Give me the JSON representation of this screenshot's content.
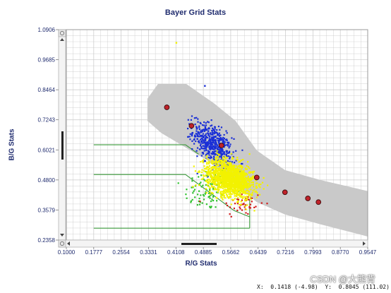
{
  "chart_data": {
    "type": "scatter",
    "title": "Bayer Grid Stats",
    "xlabel": "R/G Stats",
    "ylabel": "B/G Stats",
    "xlim": [
      0.1,
      0.9547
    ],
    "ylim": [
      0.2358,
      1.0906
    ],
    "xticks": [
      "0.1000",
      "0.1777",
      "0.2554",
      "0.3331",
      "0.4108",
      "0.4885",
      "0.5662",
      "0.6439",
      "0.7216",
      "0.7993",
      "0.8770",
      "0.9547"
    ],
    "yticks": [
      "0.2358",
      "0.3579",
      "0.4800",
      "0.6021",
      "0.7243",
      "0.8464",
      "0.9685",
      "1.0906"
    ],
    "grid": true,
    "calibration_points": [
      {
        "x": 0.385,
        "y": 0.775
      },
      {
        "x": 0.455,
        "y": 0.7
      },
      {
        "x": 0.54,
        "y": 0.62
      },
      {
        "x": 0.64,
        "y": 0.49
      },
      {
        "x": 0.72,
        "y": 0.43
      },
      {
        "x": 0.785,
        "y": 0.405
      },
      {
        "x": 0.815,
        "y": 0.39
      }
    ],
    "band_polygon": [
      [
        0.33,
        0.81
      ],
      [
        0.36,
        0.87
      ],
      [
        0.44,
        0.87
      ],
      [
        0.52,
        0.79
      ],
      [
        0.58,
        0.72
      ],
      [
        0.64,
        0.6
      ],
      [
        0.72,
        0.52
      ],
      [
        0.82,
        0.48
      ],
      [
        0.9547,
        0.435
      ],
      [
        0.9547,
        0.25
      ],
      [
        0.82,
        0.3
      ],
      [
        0.72,
        0.34
      ],
      [
        0.64,
        0.39
      ],
      [
        0.58,
        0.46
      ],
      [
        0.5,
        0.56
      ],
      [
        0.44,
        0.61
      ],
      [
        0.37,
        0.67
      ],
      [
        0.33,
        0.72
      ]
    ],
    "outline_regions": [
      {
        "x0": 0.1777,
        "x1": 0.438,
        "y": 0.623,
        "x_end": 0.475,
        "y_end": 0.585
      },
      {
        "x0": 0.1777,
        "x1": 0.438,
        "y": 0.502,
        "x_end": 0.575,
        "y_end": 0.356
      },
      {
        "x0": 0.1777,
        "x1": 0.62,
        "y": 0.284,
        "x_end": 0.62,
        "y_end": 0.284
      }
    ],
    "series": [
      {
        "color": "#1a2fd6",
        "cx": 0.515,
        "cy": 0.625,
        "sx": 0.028,
        "sy": 0.045,
        "count": 520,
        "corr": -0.55
      },
      {
        "color": "#f2f200",
        "cx": 0.565,
        "cy": 0.485,
        "sx": 0.033,
        "sy": 0.038,
        "count": 1500,
        "corr": -0.35
      },
      {
        "color": "#2fc12f",
        "cx": 0.5,
        "cy": 0.44,
        "sx": 0.032,
        "sy": 0.045,
        "count": 90,
        "corr": 0.2
      },
      {
        "color": "#d11a1a",
        "cx": 0.6,
        "cy": 0.38,
        "sx": 0.03,
        "sy": 0.028,
        "count": 45,
        "corr": 0.0
      }
    ],
    "outliers": [
      {
        "x": 0.412,
        "y": 1.037,
        "color": "#f2f200"
      },
      {
        "x": 0.493,
        "y": 0.862,
        "color": "#1a2fd6"
      }
    ]
  },
  "status_bar": {
    "x_label": "X:",
    "x_value": "0.1418 (-4.98)",
    "y_label": "Y:",
    "y_value": "0.8045 (111.02)"
  },
  "watermark_text": "CSDN @大熊背",
  "colors": {
    "plot_bg": "#ffffff",
    "grid": "#c8c8c8",
    "band": "#c9c9c9",
    "outline": "#3a9a3a",
    "calibration_fill": "#c0222a",
    "axis_text": "#1f2b6e"
  }
}
